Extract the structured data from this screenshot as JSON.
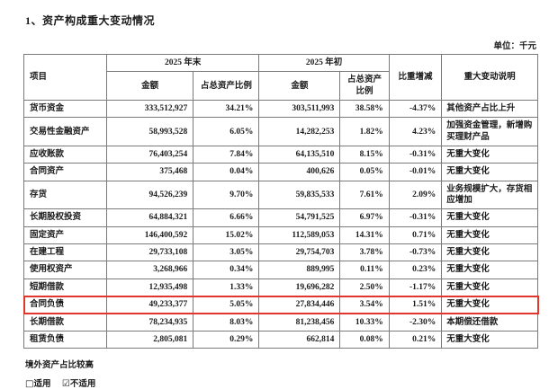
{
  "page": {
    "title": "1、资产构成重大变动情况",
    "unit_label": "单位：千元"
  },
  "table": {
    "highlight_color": "#e0362b",
    "headers": {
      "item": "项目",
      "period_end": "2025 年末",
      "period_start": "2025 年初",
      "end_amount": "金额",
      "end_ratio": "占总资产比例",
      "start_amount": "金额",
      "start_ratio": "占总资产比例",
      "change": "比重增减",
      "explanation": "重大变动说明"
    },
    "rows": [
      {
        "item": "货币资金",
        "end_amount": "333,512,927",
        "end_ratio": "34.21%",
        "start_amount": "303,511,993",
        "start_ratio": "38.58%",
        "change": "-4.37%",
        "note": "其他资产占比上升",
        "highlight": false
      },
      {
        "item": "交易性金融资产",
        "end_amount": "58,993,528",
        "end_ratio": "6.05%",
        "start_amount": "14,282,253",
        "start_ratio": "1.82%",
        "change": "4.23%",
        "note": "加强资金管理，新增购买理财产品",
        "highlight": false
      },
      {
        "item": "应收账款",
        "end_amount": "76,403,254",
        "end_ratio": "7.84%",
        "start_amount": "64,135,510",
        "start_ratio": "8.15%",
        "change": "-0.31%",
        "note": "无重大变化",
        "highlight": false
      },
      {
        "item": "合同资产",
        "end_amount": "375,468",
        "end_ratio": "0.04%",
        "start_amount": "400,626",
        "start_ratio": "0.05%",
        "change": "-0.01%",
        "note": "无重大变化",
        "highlight": false
      },
      {
        "item": "存货",
        "end_amount": "94,526,239",
        "end_ratio": "9.70%",
        "start_amount": "59,835,533",
        "start_ratio": "7.61%",
        "change": "2.09%",
        "note": "业务规模扩大，存货相应增加",
        "highlight": false
      },
      {
        "item": "长期股权投资",
        "end_amount": "64,884,321",
        "end_ratio": "6.66%",
        "start_amount": "54,791,525",
        "start_ratio": "6.97%",
        "change": "-0.31%",
        "note": "无重大变化",
        "highlight": false
      },
      {
        "item": "固定资产",
        "end_amount": "146,400,592",
        "end_ratio": "15.02%",
        "start_amount": "112,589,053",
        "start_ratio": "14.31%",
        "change": "0.71%",
        "note": "无重大变化",
        "highlight": false
      },
      {
        "item": "在建工程",
        "end_amount": "29,733,108",
        "end_ratio": "3.05%",
        "start_amount": "29,754,703",
        "start_ratio": "3.78%",
        "change": "-0.73%",
        "note": "无重大变化",
        "highlight": false
      },
      {
        "item": "使用权资产",
        "end_amount": "3,268,966",
        "end_ratio": "0.34%",
        "start_amount": "889,995",
        "start_ratio": "0.11%",
        "change": "0.23%",
        "note": "无重大变化",
        "highlight": false
      },
      {
        "item": "短期借款",
        "end_amount": "12,935,498",
        "end_ratio": "1.33%",
        "start_amount": "19,696,282",
        "start_ratio": "2.50%",
        "change": "-1.17%",
        "note": "无重大变化",
        "highlight": false
      },
      {
        "item": "合同负债",
        "end_amount": "49,233,377",
        "end_ratio": "5.05%",
        "start_amount": "27,834,446",
        "start_ratio": "3.54%",
        "change": "1.51%",
        "note": "无重大变化",
        "highlight": true
      },
      {
        "item": "长期借款",
        "end_amount": "78,234,935",
        "end_ratio": "8.03%",
        "start_amount": "81,238,456",
        "start_ratio": "10.33%",
        "change": "-2.30%",
        "note": "本期偿还借款",
        "highlight": false
      },
      {
        "item": "租赁负债",
        "end_amount": "2,805,081",
        "end_ratio": "0.29%",
        "start_amount": "662,814",
        "start_ratio": "0.08%",
        "change": "0.21%",
        "note": "无重大变化",
        "highlight": false
      }
    ]
  },
  "footer": {
    "overseas_title": "境外资产占比较高",
    "checkbox_unchecked": "□",
    "checkbox_checked": "☑",
    "applicable_label": "适用",
    "not_applicable_label": "不适用"
  }
}
